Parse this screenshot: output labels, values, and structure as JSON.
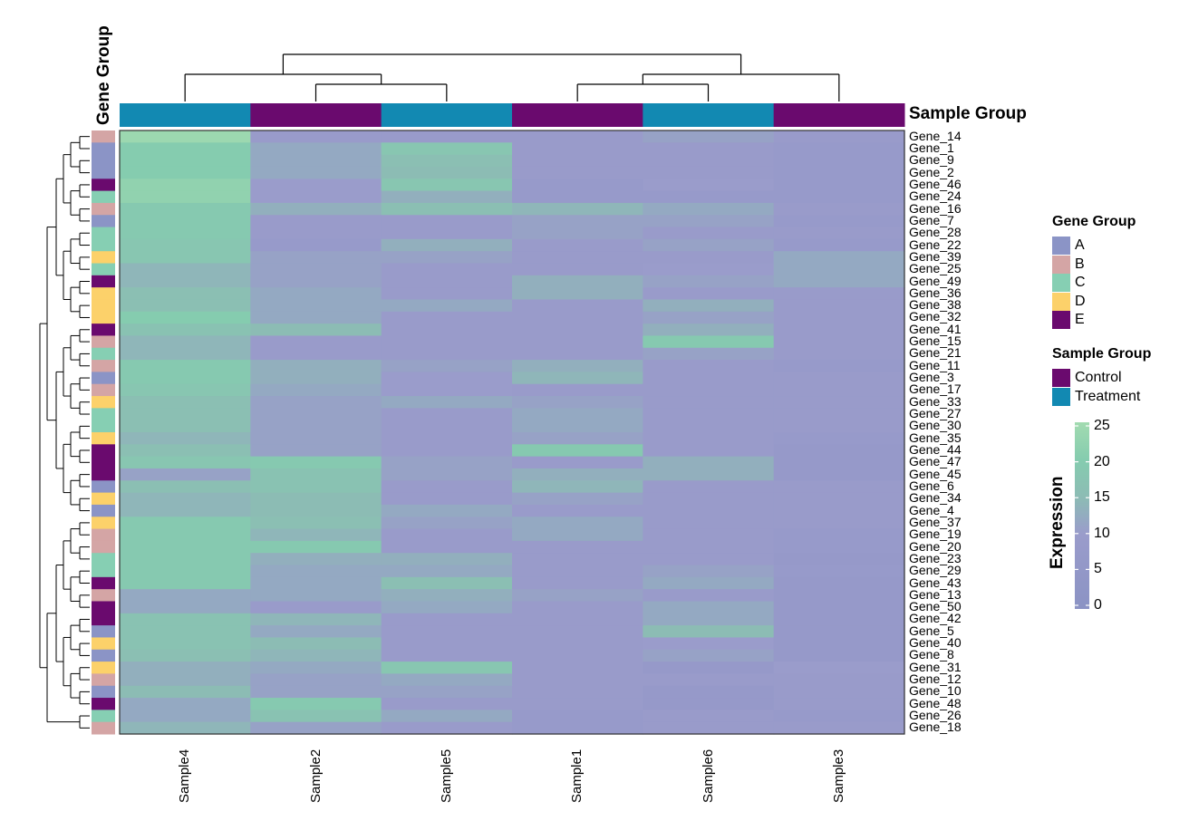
{
  "chart_data": {
    "type": "heatmap",
    "title": "",
    "value_legend_title": "Expression",
    "colorbar": {
      "min": 0,
      "max": 25,
      "ticks": [
        0,
        5,
        10,
        15,
        20,
        25
      ],
      "stops": [
        {
          "value": 0,
          "color": "#8b93c4"
        },
        {
          "value": 10,
          "color": "#9a9ccb"
        },
        {
          "value": 15,
          "color": "#8cbcb4"
        },
        {
          "value": 20,
          "color": "#85ccaf"
        },
        {
          "value": 25,
          "color": "#a2dbb0"
        }
      ]
    },
    "columns": [
      "Sample4",
      "Sample2",
      "Sample5",
      "Sample1",
      "Sample6",
      "Sample3"
    ],
    "rows": [
      "Gene_14",
      "Gene_1",
      "Gene_9",
      "Gene_2",
      "Gene_46",
      "Gene_24",
      "Gene_16",
      "Gene_7",
      "Gene_28",
      "Gene_22",
      "Gene_39",
      "Gene_25",
      "Gene_49",
      "Gene_36",
      "Gene_38",
      "Gene_32",
      "Gene_41",
      "Gene_15",
      "Gene_21",
      "Gene_11",
      "Gene_3",
      "Gene_17",
      "Gene_33",
      "Gene_27",
      "Gene_30",
      "Gene_35",
      "Gene_44",
      "Gene_47",
      "Gene_45",
      "Gene_6",
      "Gene_34",
      "Gene_4",
      "Gene_37",
      "Gene_19",
      "Gene_20",
      "Gene_23",
      "Gene_29",
      "Gene_43",
      "Gene_13",
      "Gene_50",
      "Gene_42",
      "Gene_5",
      "Gene_40",
      "Gene_8",
      "Gene_31",
      "Gene_12",
      "Gene_10",
      "Gene_48",
      "Gene_26",
      "Gene_18"
    ],
    "values": [
      [
        24,
        9,
        9,
        9,
        11,
        9
      ],
      [
        20,
        12,
        18,
        9,
        9,
        8
      ],
      [
        20,
        12,
        16,
        9,
        9,
        8
      ],
      [
        20,
        12,
        15,
        9,
        9,
        8
      ],
      [
        22,
        10,
        18,
        8,
        10,
        8
      ],
      [
        22,
        10,
        13,
        8,
        8,
        8
      ],
      [
        19,
        13,
        16,
        14,
        12,
        9
      ],
      [
        19,
        9,
        9,
        11,
        11,
        8
      ],
      [
        19,
        9,
        9,
        11,
        9,
        9
      ],
      [
        18,
        8,
        13,
        9,
        11,
        8
      ],
      [
        18,
        11,
        11,
        9,
        9,
        12
      ],
      [
        14,
        11,
        9,
        9,
        10,
        12
      ],
      [
        14,
        11,
        9,
        13,
        11,
        12
      ],
      [
        16,
        12,
        9,
        13,
        9,
        9
      ],
      [
        16,
        12,
        12,
        9,
        13,
        9
      ],
      [
        20,
        12,
        9,
        9,
        11,
        9
      ],
      [
        17,
        15,
        9,
        9,
        13,
        9
      ],
      [
        14,
        9,
        9,
        9,
        19,
        9
      ],
      [
        14,
        9,
        9,
        9,
        11,
        9
      ],
      [
        19,
        13,
        11,
        13,
        9,
        8
      ],
      [
        19,
        13,
        10,
        14,
        9,
        9
      ],
      [
        18,
        12,
        10,
        9,
        9,
        9
      ],
      [
        16,
        11,
        12,
        11,
        9,
        9
      ],
      [
        16,
        11,
        9,
        12,
        9,
        9
      ],
      [
        16,
        11,
        9,
        12,
        9,
        9
      ],
      [
        14,
        11,
        9,
        11,
        9,
        8
      ],
      [
        16,
        11,
        9,
        19,
        9,
        7
      ],
      [
        18,
        19,
        11,
        9,
        13,
        7
      ],
      [
        11,
        17,
        11,
        13,
        13,
        7
      ],
      [
        16,
        17,
        9,
        14,
        9,
        9
      ],
      [
        14,
        15,
        9,
        11,
        9,
        9
      ],
      [
        14,
        15,
        12,
        9,
        9,
        9
      ],
      [
        19,
        16,
        11,
        12,
        9,
        9
      ],
      [
        19,
        14,
        9,
        12,
        9,
        8
      ],
      [
        19,
        19,
        9,
        9,
        9,
        8
      ],
      [
        19,
        13,
        13,
        9,
        9,
        7
      ],
      [
        19,
        12,
        12,
        9,
        11,
        8
      ],
      [
        19,
        12,
        16,
        9,
        12,
        7
      ],
      [
        12,
        12,
        13,
        11,
        9,
        7
      ],
      [
        12,
        9,
        12,
        9,
        12,
        7
      ],
      [
        17,
        14,
        9,
        9,
        12,
        7
      ],
      [
        17,
        12,
        9,
        9,
        15,
        7
      ],
      [
        17,
        15,
        9,
        9,
        10,
        7
      ],
      [
        16,
        14,
        9,
        9,
        11,
        7
      ],
      [
        13,
        12,
        18,
        9,
        7,
        10
      ],
      [
        13,
        11,
        12,
        9,
        9,
        9
      ],
      [
        15,
        11,
        11,
        9,
        7,
        9
      ],
      [
        12,
        19,
        9,
        9,
        7,
        9
      ],
      [
        12,
        17,
        12,
        8,
        9,
        8
      ],
      [
        14,
        11,
        9,
        8,
        9,
        9
      ]
    ],
    "row_annotation": {
      "title": "Gene Group",
      "levels": [
        {
          "name": "A",
          "color": "#8b94c6"
        },
        {
          "name": "B",
          "color": "#d4a5a5"
        },
        {
          "name": "C",
          "color": "#86cfb3"
        },
        {
          "name": "D",
          "color": "#fcd16a"
        },
        {
          "name": "E",
          "color": "#6a0a6e"
        }
      ],
      "values": [
        "B",
        "A",
        "A",
        "A",
        "E",
        "C",
        "B",
        "A",
        "C",
        "C",
        "D",
        "C",
        "E",
        "D",
        "D",
        "D",
        "E",
        "B",
        "C",
        "B",
        "A",
        "B",
        "D",
        "C",
        "C",
        "D",
        "E",
        "E",
        "E",
        "A",
        "D",
        "A",
        "D",
        "B",
        "B",
        "C",
        "C",
        "E",
        "B",
        "E",
        "E",
        "A",
        "D",
        "A",
        "D",
        "B",
        "A",
        "E",
        "C",
        "B"
      ]
    },
    "column_annotation": {
      "title": "Sample Group",
      "levels": [
        {
          "name": "Control",
          "color": "#6a0a6e"
        },
        {
          "name": "Treatment",
          "color": "#1289b2"
        }
      ],
      "values": [
        "Treatment",
        "Control",
        "Treatment",
        "Control",
        "Treatment",
        "Control"
      ]
    },
    "column_dendrogram": "((Sample4,(Sample2,Sample5)),((Sample1,Sample6),Sample3))",
    "row_dendrogram": "shown (hierarchical clustering of 50 genes)",
    "legend_position": "right"
  }
}
